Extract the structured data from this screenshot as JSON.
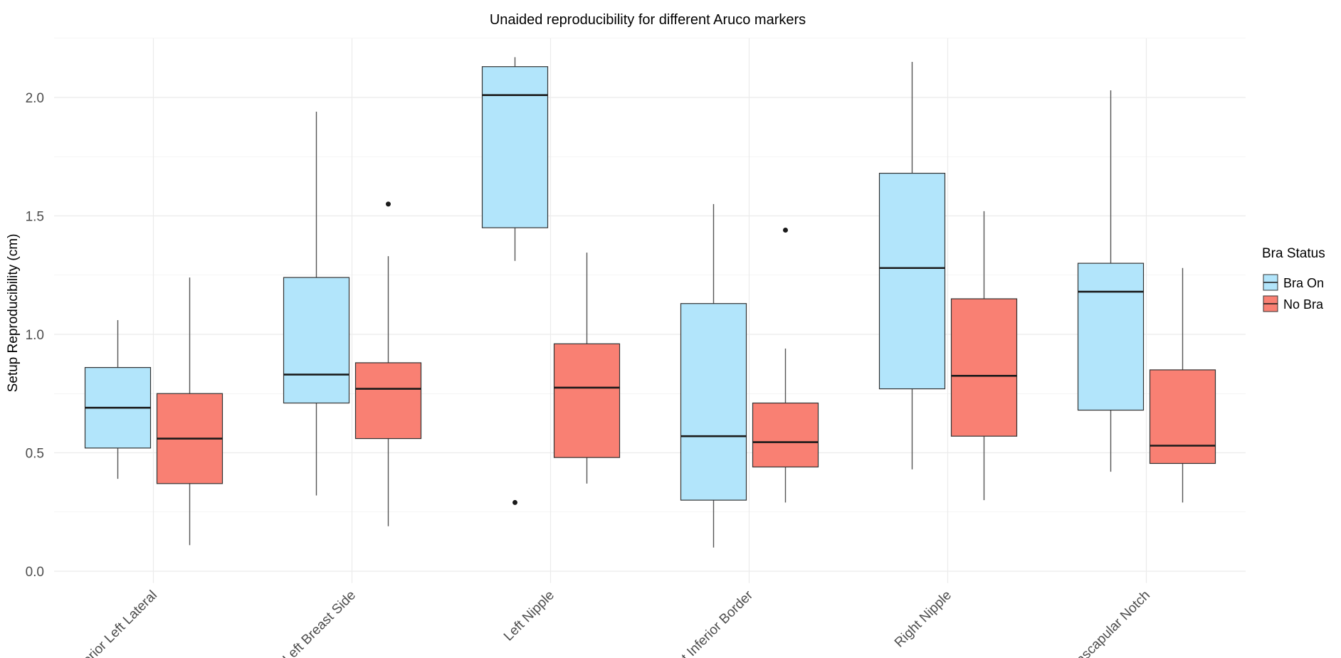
{
  "chart_data": {
    "type": "boxplot",
    "title": "Unaided reproducibility for different Aruco markers",
    "xlabel": "",
    "ylabel": "Setup Reproducibility (cm)",
    "ylim": [
      -0.05,
      2.25
    ],
    "yticks": [
      0.0,
      0.5,
      1.0,
      1.5,
      2.0
    ],
    "ytick_labels": [
      "0.0",
      "0.5",
      "1.0",
      "1.5",
      "2.0"
    ],
    "grid": true,
    "legend": {
      "title": "Bra Status",
      "placement": "right",
      "entries": [
        "Bra On",
        "No Bra"
      ]
    },
    "colors": {
      "Bra On": "#B2E5FB",
      "No Bra": "#F98073"
    },
    "categories": [
      "Inferior Left Lateral",
      "Left Breast Side",
      "Left Nipple",
      "Right Inferior Border",
      "Right Nipple",
      "Suprascapular Notch"
    ],
    "series": [
      {
        "name": "Bra On",
        "boxes": [
          {
            "low": 0.39,
            "q1": 0.52,
            "median": 0.69,
            "q3": 0.86,
            "high": 1.06,
            "outliers": []
          },
          {
            "low": 0.32,
            "q1": 0.71,
            "median": 0.83,
            "q3": 1.24,
            "high": 1.94,
            "outliers": []
          },
          {
            "low": 1.31,
            "q1": 1.45,
            "median": 2.01,
            "q3": 2.13,
            "high": 2.17,
            "outliers": [
              0.29
            ]
          },
          {
            "low": 0.1,
            "q1": 0.3,
            "median": 0.57,
            "q3": 1.13,
            "high": 1.55,
            "outliers": []
          },
          {
            "low": 0.43,
            "q1": 0.77,
            "median": 1.28,
            "q3": 1.68,
            "high": 2.15,
            "outliers": []
          },
          {
            "low": 0.42,
            "q1": 0.68,
            "median": 1.18,
            "q3": 1.3,
            "high": 2.03,
            "outliers": []
          }
        ]
      },
      {
        "name": "No Bra",
        "boxes": [
          {
            "low": 0.11,
            "q1": 0.37,
            "median": 0.56,
            "q3": 0.75,
            "high": 1.24,
            "outliers": []
          },
          {
            "low": 0.19,
            "q1": 0.56,
            "median": 0.77,
            "q3": 0.88,
            "high": 1.33,
            "outliers": [
              1.55
            ]
          },
          {
            "low": 0.37,
            "q1": 0.48,
            "median": 0.775,
            "q3": 0.96,
            "high": 1.345,
            "outliers": []
          },
          {
            "low": 0.29,
            "q1": 0.44,
            "median": 0.545,
            "q3": 0.71,
            "high": 0.94,
            "outliers": [
              1.44
            ]
          },
          {
            "low": 0.3,
            "q1": 0.57,
            "median": 0.825,
            "q3": 1.15,
            "high": 1.52,
            "outliers": []
          },
          {
            "low": 0.29,
            "q1": 0.455,
            "median": 0.53,
            "q3": 0.85,
            "high": 1.28,
            "outliers": []
          }
        ]
      }
    ]
  }
}
